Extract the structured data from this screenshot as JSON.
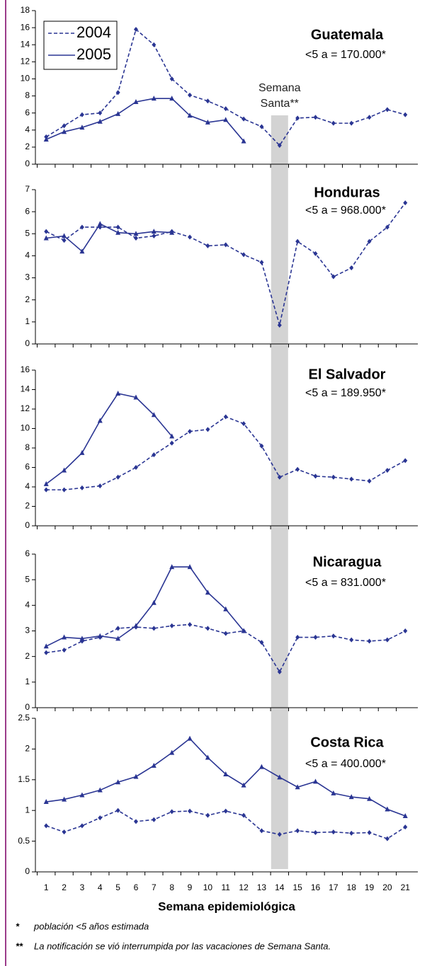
{
  "x_axis": {
    "x": [
      1,
      2,
      3,
      4,
      5,
      6,
      7,
      8,
      9,
      10,
      11,
      12,
      13,
      14,
      15,
      16,
      17,
      18,
      19,
      20,
      21
    ],
    "xlim": [
      0.4,
      21.7
    ],
    "label": "Semana epidemiológica"
  },
  "highlight": {
    "x": 14,
    "label": [
      "Semana",
      "Santa**"
    ]
  },
  "chart_data": [
    {
      "type": "line",
      "title": "Guatemala",
      "subtitle": "<5 a = 170.000*",
      "ylim": [
        0,
        18
      ],
      "yticks": [
        0,
        2,
        4,
        6,
        8,
        10,
        12,
        14,
        16,
        18
      ],
      "series": [
        {
          "name": "2004",
          "color": "#2a3593",
          "style": "dashed",
          "marker": "diamond",
          "values": [
            3.2,
            4.5,
            5.8,
            6.0,
            8.4,
            15.8,
            14.0,
            10.0,
            8.1,
            7.4,
            6.5,
            5.3,
            4.4,
            2.2,
            5.4,
            5.5,
            4.8,
            4.8,
            5.5,
            6.4,
            5.8
          ]
        },
        {
          "name": "2005",
          "color": "#2a3593",
          "style": "solid",
          "marker": "triangle",
          "values": [
            2.9,
            3.8,
            4.3,
            5.0,
            5.9,
            7.3,
            7.7,
            7.7,
            5.7,
            4.9,
            5.2,
            2.7,
            null,
            null,
            null,
            null,
            null,
            null,
            null,
            null,
            null
          ]
        }
      ]
    },
    {
      "type": "line",
      "title": "Honduras",
      "subtitle": "<5 a = 968.000*",
      "ylim": [
        0,
        7
      ],
      "yticks": [
        0,
        1,
        2,
        3,
        4,
        5,
        6,
        7
      ],
      "series": [
        {
          "color": "#2a3593",
          "style": "dashed",
          "marker": "diamond",
          "values": [
            5.1,
            4.7,
            5.3,
            5.3,
            5.3,
            4.8,
            4.9,
            5.1,
            4.85,
            4.45,
            4.5,
            4.05,
            3.7,
            0.85,
            4.65,
            4.1,
            3.05,
            3.45,
            4.65,
            5.3,
            6.4
          ]
        },
        {
          "color": "#2a3593",
          "style": "solid",
          "marker": "triangle",
          "values": [
            4.8,
            4.9,
            4.2,
            5.45,
            5.05,
            5.0,
            5.1,
            5.05,
            null,
            null,
            null,
            null,
            null,
            null,
            null,
            null,
            null,
            null,
            null,
            null,
            null
          ]
        }
      ]
    },
    {
      "type": "line",
      "title": "El Salvador",
      "subtitle": "<5 a = 189.950*",
      "ylim": [
        0,
        16
      ],
      "yticks": [
        0,
        2,
        4,
        6,
        8,
        10,
        12,
        14,
        16
      ],
      "series": [
        {
          "color": "#2a3593",
          "style": "dashed",
          "marker": "diamond",
          "values": [
            3.7,
            3.7,
            3.9,
            4.1,
            5.0,
            6.0,
            7.3,
            8.5,
            9.7,
            9.9,
            11.2,
            10.5,
            8.2,
            5.0,
            5.8,
            5.1,
            5.0,
            4.8,
            4.6,
            5.7,
            6.7
          ]
        },
        {
          "color": "#2a3593",
          "style": "solid",
          "marker": "triangle",
          "values": [
            4.3,
            5.7,
            7.5,
            10.8,
            13.6,
            13.2,
            11.4,
            9.2,
            null,
            null,
            null,
            null,
            null,
            null,
            null,
            null,
            null,
            null,
            null,
            null,
            null
          ]
        }
      ]
    },
    {
      "type": "line",
      "title": "Nicaragua",
      "subtitle": "<5 a = 831.000*",
      "ylim": [
        0,
        6
      ],
      "yticks": [
        0,
        1,
        2,
        3,
        4,
        5,
        6
      ],
      "series": [
        {
          "color": "#2a3593",
          "style": "dashed",
          "marker": "diamond",
          "values": [
            2.15,
            2.25,
            2.6,
            2.75,
            3.1,
            3.15,
            3.1,
            3.2,
            3.25,
            3.1,
            2.9,
            3.0,
            2.55,
            1.4,
            2.75,
            2.75,
            2.8,
            2.65,
            2.6,
            2.65,
            3.0
          ]
        },
        {
          "color": "#2a3593",
          "style": "solid",
          "marker": "triangle",
          "values": [
            2.4,
            2.75,
            2.7,
            2.8,
            2.7,
            3.2,
            4.1,
            5.5,
            5.5,
            4.5,
            3.85,
            3.0,
            null,
            null,
            null,
            null,
            null,
            null,
            null,
            null,
            null
          ]
        }
      ]
    },
    {
      "type": "line",
      "title": "Costa Rica",
      "subtitle": "<5 a = 400.000*",
      "ylim": [
        0,
        2.5
      ],
      "yticks": [
        0,
        0.5,
        1,
        1.5,
        2,
        2.5
      ],
      "series": [
        {
          "color": "#2a3593",
          "style": "dashed",
          "marker": "diamond",
          "values": [
            0.75,
            0.65,
            0.75,
            0.88,
            1.0,
            0.82,
            0.85,
            0.98,
            0.99,
            0.92,
            0.99,
            0.92,
            0.67,
            0.61,
            0.67,
            0.64,
            0.65,
            0.63,
            0.64,
            0.54,
            0.73
          ]
        },
        {
          "color": "#2a3593",
          "style": "solid",
          "marker": "triangle",
          "values": [
            1.14,
            1.18,
            1.25,
            1.33,
            1.46,
            1.55,
            1.73,
            1.94,
            2.17,
            1.86,
            1.59,
            1.41,
            1.71,
            1.54,
            1.38,
            1.47,
            1.28,
            1.22,
            1.19,
            1.02,
            0.91
          ]
        }
      ]
    }
  ],
  "footnotes": [
    {
      "mark": "*",
      "text": "población <5 años estimada"
    },
    {
      "mark": "**",
      "text": "La notificación se vió interrumpida por las vacaciones de Semana Santa."
    }
  ]
}
